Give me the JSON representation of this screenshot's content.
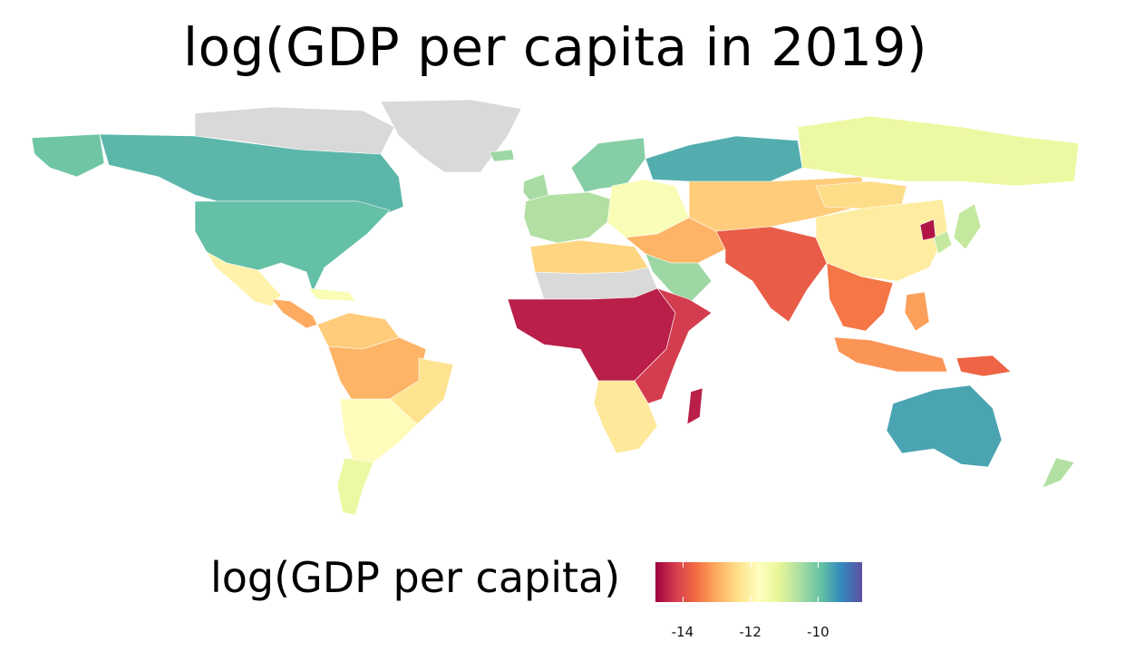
{
  "title": "log(GDP per capita in 2019)",
  "legend": {
    "title": "log(GDP per capita)",
    "min": -14.8,
    "max": -8.7,
    "ticks": [
      {
        "value": -14,
        "label": "-14"
      },
      {
        "value": -12,
        "label": "-12"
      },
      {
        "value": -10,
        "label": "-10"
      }
    ],
    "colors": [
      "#9e0142",
      "#d53e4f",
      "#f46d43",
      "#fdae61",
      "#fee08b",
      "#ffffbf",
      "#e6f598",
      "#abdda4",
      "#66c2a5",
      "#3288bd",
      "#5e4fa2"
    ]
  },
  "missing_color": "#d9d9d9",
  "regions": [
    {
      "name": "Greenland",
      "value": null
    },
    {
      "name": "Arctic Canada",
      "value": null
    },
    {
      "name": "Canada",
      "value": -9.8
    },
    {
      "name": "Alaska",
      "value": -10.0
    },
    {
      "name": "United States",
      "value": -9.9
    },
    {
      "name": "Mexico",
      "value": -12.0
    },
    {
      "name": "Central America",
      "value": -13.0
    },
    {
      "name": "Caribbean",
      "value": -11.6
    },
    {
      "name": "Colombia and Venezuela",
      "value": -12.6
    },
    {
      "name": "Amazon Basin",
      "value": -12.9
    },
    {
      "name": "Eastern Brazil",
      "value": -12.3
    },
    {
      "name": "Southern South America",
      "value": -11.8
    },
    {
      "name": "Patagonia",
      "value": -11.3
    },
    {
      "name": "Iceland",
      "value": -10.4
    },
    {
      "name": "United Kingdom and Ireland",
      "value": -10.5
    },
    {
      "name": "Scandinavia",
      "value": -10.2
    },
    {
      "name": "Western Europe",
      "value": -10.6
    },
    {
      "name": "Eastern Europe",
      "value": -11.6
    },
    {
      "name": "Northern Russia",
      "value": -9.7
    },
    {
      "name": "Siberia",
      "value": -11.3
    },
    {
      "name": "Central Asia",
      "value": -12.6
    },
    {
      "name": "Middle East",
      "value": -12.9
    },
    {
      "name": "Arabian Peninsula",
      "value": -10.4
    },
    {
      "name": "North Africa",
      "value": -12.5
    },
    {
      "name": "Sahara",
      "value": null
    },
    {
      "name": "Sahel and Central Africa",
      "value": -14.5
    },
    {
      "name": "East Africa",
      "value": -14.2
    },
    {
      "name": "Southern Africa",
      "value": -12.2
    },
    {
      "name": "Madagascar",
      "value": -14.5
    },
    {
      "name": "South Asia",
      "value": -13.8
    },
    {
      "name": "China",
      "value": -12.1
    },
    {
      "name": "Mongolia",
      "value": -12.4
    },
    {
      "name": "Southeast Asia",
      "value": -13.5
    },
    {
      "name": "Japan and Korea",
      "value": -10.8
    },
    {
      "name": "North Korea",
      "value": -14.6
    },
    {
      "name": "Indonesia",
      "value": -13.2
    },
    {
      "name": "Papua New Guinea",
      "value": -13.7
    },
    {
      "name": "Philippines",
      "value": -13.1
    },
    {
      "name": "Australia",
      "value": -9.6
    },
    {
      "name": "New Zealand",
      "value": -10.6
    }
  ]
}
